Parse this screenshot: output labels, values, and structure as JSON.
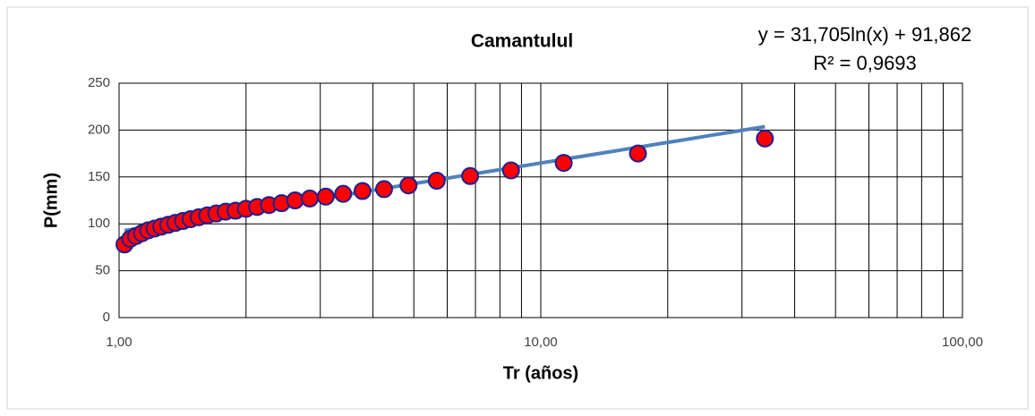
{
  "chart_data": {
    "type": "scatter",
    "title": "Camantulul",
    "xlabel": "Tr (años)",
    "ylabel": "P(mm)",
    "x": [
      1.03,
      1.063,
      1.097,
      1.133,
      1.172,
      1.214,
      1.259,
      1.308,
      1.36,
      1.417,
      1.478,
      1.545,
      1.619,
      1.7,
      1.789,
      1.889,
      2.0,
      2.125,
      2.267,
      2.429,
      2.615,
      2.833,
      3.091,
      3.4,
      3.778,
      4.25,
      4.857,
      5.667,
      6.8,
      8.5,
      11.333,
      17.0,
      34.0
    ],
    "values": [
      78,
      84,
      87,
      90,
      93,
      95,
      97,
      99,
      101,
      103,
      105,
      107,
      109,
      111,
      113,
      114,
      116,
      118,
      120,
      122,
      125,
      127,
      129,
      132,
      135,
      137,
      141,
      146,
      151,
      157,
      165,
      175,
      191
    ],
    "color": "#ff0000",
    "edgecolor": "#1f1f8f",
    "xscale": "log",
    "xlim": [
      1,
      100
    ],
    "xticks": [
      {
        "value": 1,
        "label": "1,00"
      },
      {
        "value": 10,
        "label": "10,00"
      },
      {
        "value": 100,
        "label": "100,00"
      }
    ],
    "xminorticks": [
      2,
      3,
      4,
      5,
      6,
      7,
      8,
      9,
      20,
      30,
      40,
      50,
      60,
      70,
      80,
      90
    ],
    "ylim": [
      0,
      250
    ],
    "yticks": [
      0,
      50,
      100,
      150,
      200,
      250
    ],
    "grid": true,
    "trendline": {
      "type": "log",
      "a": 31.705,
      "b": 91.862,
      "color": "#4f81bd",
      "equation": "y = 31,705ln(x) + 91,862",
      "r2": "R² = 0,9693"
    }
  }
}
